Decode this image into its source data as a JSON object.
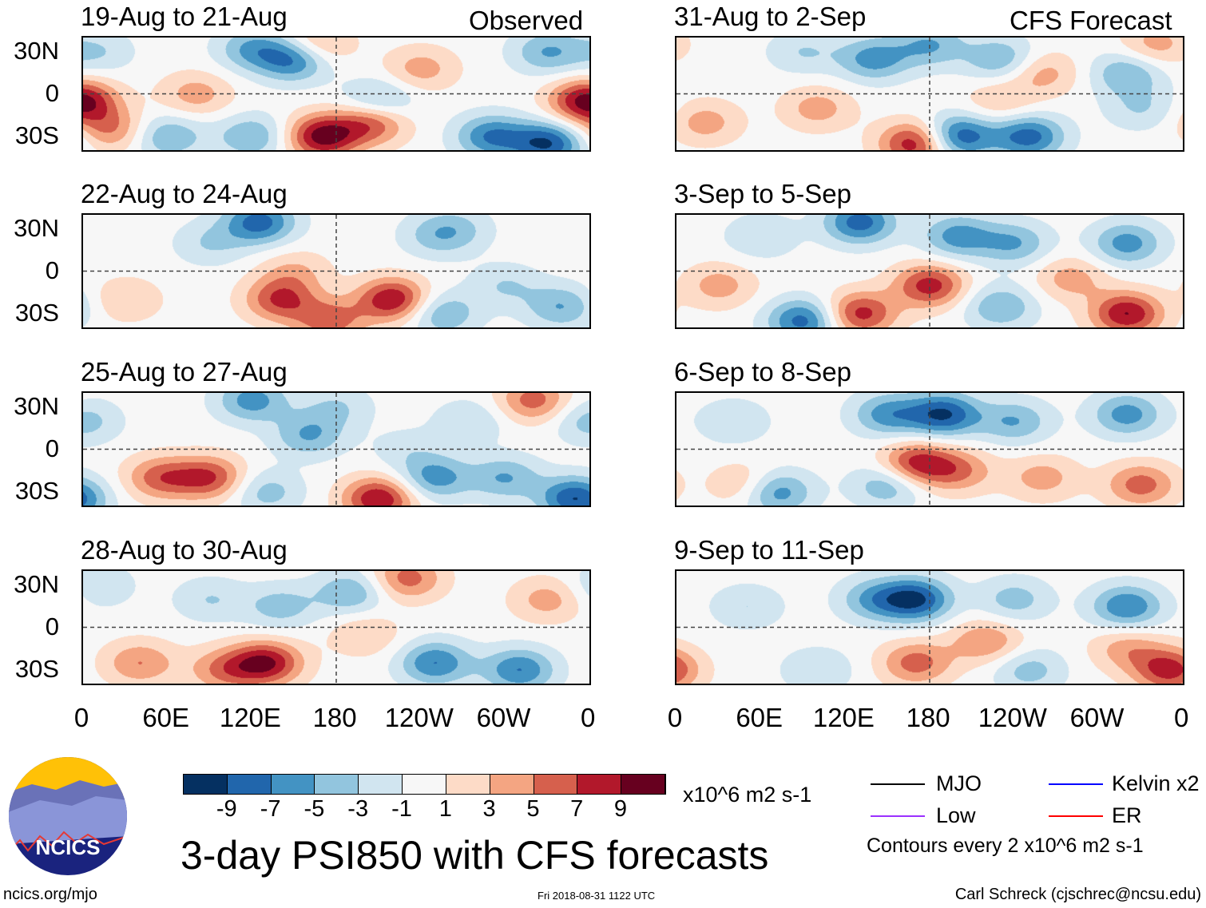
{
  "header": {
    "observed_label": "Observed",
    "forecast_label": "CFS Forecast"
  },
  "panels": [
    {
      "title": "19-Aug to 21-Aug",
      "col": "observed"
    },
    {
      "title": "22-Aug to 24-Aug",
      "col": "observed"
    },
    {
      "title": "25-Aug to 27-Aug",
      "col": "observed"
    },
    {
      "title": "28-Aug to 30-Aug",
      "col": "observed"
    },
    {
      "title": "31-Aug to 2-Sep",
      "col": "forecast"
    },
    {
      "title": "3-Sep to 5-Sep",
      "col": "forecast"
    },
    {
      "title": "6-Sep to 8-Sep",
      "col": "forecast"
    },
    {
      "title": "9-Sep to 11-Sep",
      "col": "forecast"
    }
  ],
  "axes": {
    "lat_labels": [
      "30N",
      "0",
      "30S"
    ],
    "lon_labels": [
      "0",
      "60E",
      "120E",
      "180",
      "120W",
      "60W",
      "0"
    ]
  },
  "colorbar": {
    "labels": [
      "-9",
      "-7",
      "-5",
      "-3",
      "-1",
      "1",
      "3",
      "5",
      "7",
      "9"
    ],
    "units": "x10^6 m2 s-1",
    "colors": [
      "#053061",
      "#2166ac",
      "#4393c3",
      "#92c5de",
      "#d1e5f0",
      "#f7f7f7",
      "#fddbc7",
      "#f4a582",
      "#d6604d",
      "#b2182b",
      "#67001f"
    ]
  },
  "legend": {
    "mjo": "MJO",
    "low": "Low",
    "kelvin": "Kelvin x2",
    "er": "ER",
    "contours_note": "Contours every 2 x10^6 m2 s-1",
    "colors": {
      "mjo": "#000000",
      "low": "#9b30ff",
      "kelvin": "#0000ff",
      "er": "#ff0000"
    }
  },
  "footer": {
    "title": "3-day PSI850 with CFS forecasts",
    "url": "ncics.org/mjo",
    "timestamp": "Fri 2018-08-31 1122 UTC",
    "author": "Carl Schreck (cjschrec@ncsu.edu)",
    "logo_text": "NCICS"
  }
}
